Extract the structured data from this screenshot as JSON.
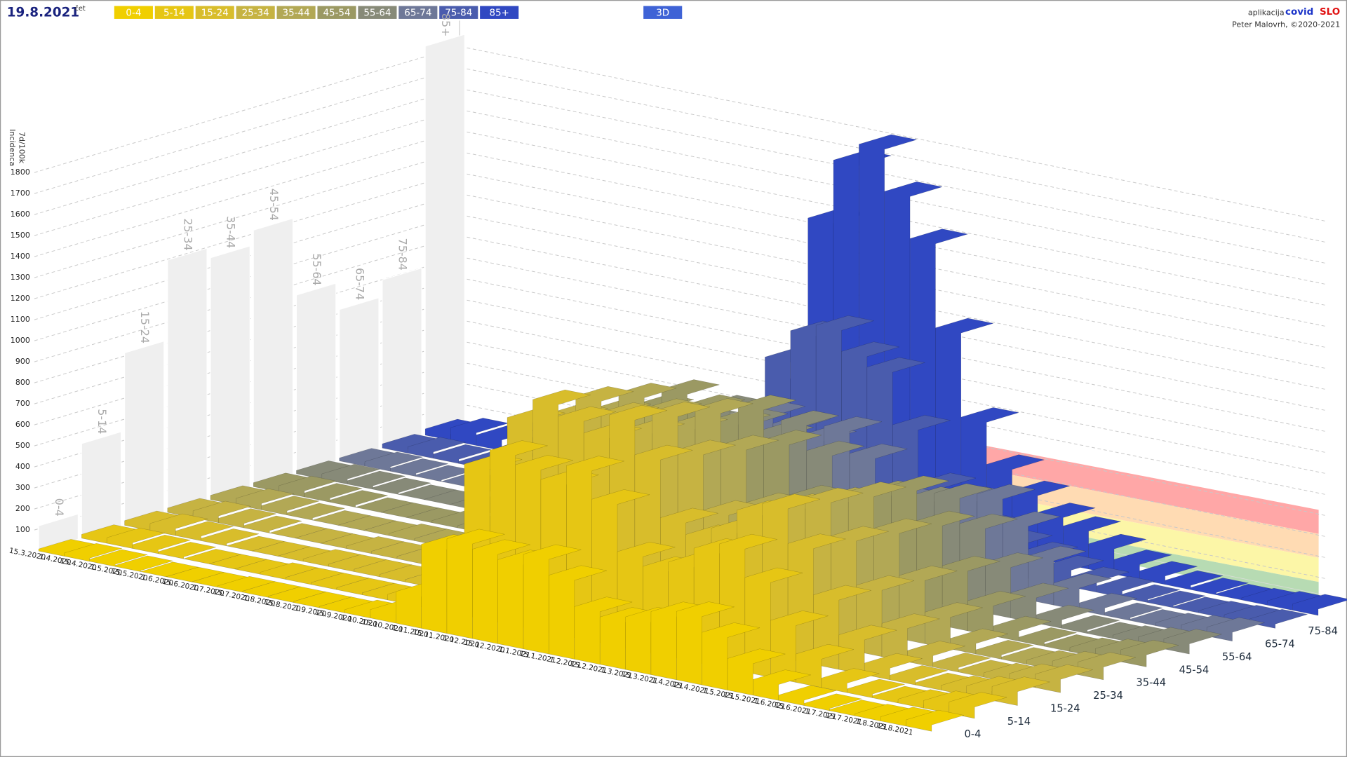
{
  "chart_data": {
    "type": "bar3d",
    "date": "19.8.2021",
    "weekday": "čet",
    "toggle": "3D",
    "credit_prefix": "aplikacija",
    "brand_a": "covid",
    "brand_b": "SLO",
    "credit": "Peter Malovrh, ©2020-2021",
    "ylabel": [
      "Incidenca",
      "7d/100k"
    ],
    "ylim": [
      0,
      1800
    ],
    "yticks": [
      100,
      200,
      300,
      400,
      500,
      600,
      700,
      800,
      900,
      1000,
      1100,
      1200,
      1300,
      1400,
      1500,
      1600,
      1700,
      1800
    ],
    "categories": [
      "15.3.2020",
      "1.4.2020",
      "15.4.2020",
      "1.5.2020",
      "15.5.2020",
      "1.6.2020",
      "15.6.2020",
      "1.7.2020",
      "15.7.2020",
      "1.8.2020",
      "15.8.2020",
      "1.9.2020",
      "15.9.2020",
      "1.10.2020",
      "15.10.2020",
      "1.11.2020",
      "15.11.2020",
      "1.12.2020",
      "15.12.2020",
      "1.1.2021",
      "15.1.2021",
      "1.2.2021",
      "15.2.2021",
      "1.3.2021",
      "15.3.2021",
      "1.4.2021",
      "15.4.2021",
      "1.5.2021",
      "15.5.2021",
      "1.6.2021",
      "15.6.2021",
      "1.7.2021",
      "15.7.2021",
      "1.8.2021",
      "15.8.2021"
    ],
    "peaks": [
      120,
      450,
      820,
      1200,
      1150,
      1220,
      850,
      720,
      800,
      1850
    ],
    "series": [
      {
        "name": "0-4",
        "color": "#f0cf00",
        "values": [
          10,
          15,
          10,
          5,
          0,
          0,
          0,
          5,
          5,
          5,
          5,
          5,
          15,
          40,
          150,
          400,
          450,
          425,
          400,
          450,
          375,
          250,
          225,
          250,
          300,
          325,
          250,
          150,
          75,
          25,
          10,
          5,
          10,
          20,
          30
        ]
      },
      {
        "name": "5-14",
        "color": "#e6c614",
        "values": [
          18,
          27,
          18,
          9,
          0,
          0,
          0,
          9,
          9,
          9,
          9,
          9,
          27,
          72,
          270,
          720,
          810,
          765,
          720,
          810,
          675,
          450,
          405,
          450,
          540,
          585,
          450,
          270,
          135,
          45,
          18,
          9,
          18,
          36,
          54
        ]
      },
      {
        "name": "15-24",
        "color": "#d8bd2b",
        "values": [
          22,
          33,
          22,
          11,
          0,
          0,
          0,
          11,
          11,
          11,
          11,
          11,
          33,
          88,
          330,
          880,
          990,
          935,
          880,
          990,
          825,
          550,
          495,
          550,
          660,
          715,
          550,
          330,
          165,
          55,
          22,
          11,
          22,
          44,
          66
        ]
      },
      {
        "name": "25-34",
        "color": "#c6b342",
        "values": [
          21,
          32,
          21,
          11,
          0,
          0,
          0,
          11,
          11,
          11,
          11,
          11,
          32,
          84,
          315,
          840,
          945,
          893,
          840,
          945,
          788,
          525,
          473,
          525,
          630,
          683,
          525,
          315,
          158,
          53,
          21,
          11,
          21,
          42,
          63
        ]
      },
      {
        "name": "35-44",
        "color": "#b2a855",
        "values": [
          20,
          30,
          20,
          10,
          0,
          0,
          0,
          10,
          10,
          10,
          10,
          10,
          30,
          80,
          300,
          800,
          900,
          850,
          800,
          900,
          750,
          500,
          450,
          500,
          600,
          650,
          500,
          300,
          150,
          50,
          20,
          10,
          20,
          40,
          60
        ]
      },
      {
        "name": "45-54",
        "color": "#9b9963",
        "values": [
          19,
          29,
          19,
          10,
          0,
          0,
          0,
          10,
          10,
          10,
          10,
          10,
          29,
          76,
          285,
          760,
          855,
          808,
          760,
          855,
          713,
          475,
          428,
          475,
          570,
          618,
          475,
          285,
          143,
          48,
          19,
          10,
          19,
          38,
          57
        ]
      },
      {
        "name": "55-64",
        "color": "#878a78",
        "values": [
          16,
          24,
          16,
          8,
          0,
          0,
          0,
          8,
          8,
          8,
          8,
          8,
          24,
          64,
          240,
          640,
          720,
          680,
          640,
          720,
          600,
          400,
          360,
          400,
          480,
          520,
          400,
          240,
          120,
          40,
          16,
          8,
          16,
          32,
          48
        ]
      },
      {
        "name": "65-74",
        "color": "#6e7898",
        "values": [
          14,
          21,
          14,
          7,
          0,
          0,
          0,
          7,
          7,
          7,
          7,
          7,
          21,
          56,
          210,
          560,
          630,
          595,
          560,
          630,
          525,
          350,
          315,
          350,
          420,
          455,
          350,
          210,
          105,
          35,
          14,
          7,
          14,
          28,
          42
        ]
      },
      {
        "name": "75-84",
        "color": "#4a5cad",
        "values": [
          20,
          30,
          20,
          10,
          0,
          0,
          0,
          10,
          10,
          10,
          10,
          10,
          30,
          80,
          300,
          800,
          950,
          1000,
          900,
          850,
          600,
          350,
          250,
          200,
          150,
          120,
          80,
          50,
          30,
          15,
          10,
          5,
          10,
          15,
          20
        ]
      },
      {
        "name": "85+",
        "color": "#3048c2",
        "values": [
          30,
          60,
          50,
          20,
          5,
          0,
          0,
          5,
          10,
          10,
          10,
          10,
          40,
          150,
          600,
          1400,
          1700,
          1800,
          1600,
          1400,
          1000,
          600,
          400,
          300,
          220,
          180,
          120,
          70,
          40,
          20,
          10,
          5,
          10,
          20,
          30
        ]
      }
    ]
  }
}
